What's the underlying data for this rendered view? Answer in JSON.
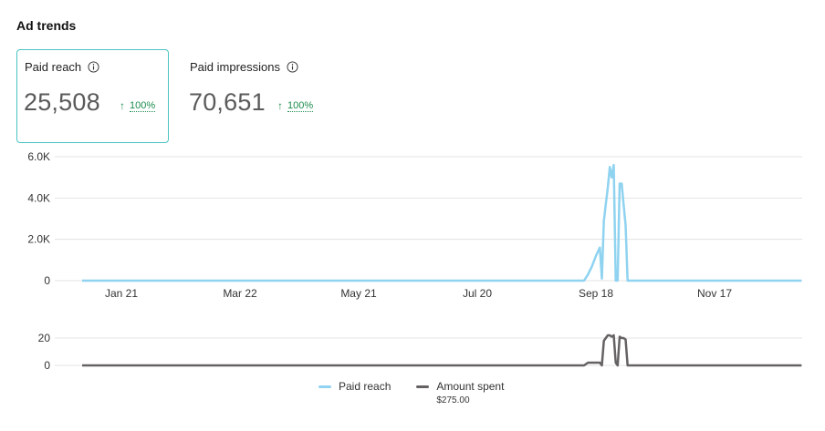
{
  "section": {
    "title": "Ad trends"
  },
  "metrics": [
    {
      "label": "Paid reach",
      "value": "25,508",
      "change": "100%",
      "selected": true
    },
    {
      "label": "Paid impressions",
      "value": "70,651",
      "change": "100%",
      "selected": false
    }
  ],
  "colors": {
    "reach": "#8fd3f0",
    "spent": "#666263",
    "accent": "#4cc3c3",
    "up": "#1e8c4e",
    "grid": "#e3e3e3"
  },
  "legend": {
    "reach_label": "Paid reach",
    "spent_label": "Amount spent",
    "spent_total": "$275.00"
  },
  "chart_data": [
    {
      "type": "line",
      "title": "",
      "xlabel": "",
      "ylabel": "",
      "x_tick_labels": [
        "Jan 21",
        "Mar 22",
        "May 21",
        "Jul 20",
        "Sep 18",
        "Nov 17"
      ],
      "y_tick_labels": [
        "0",
        "2.0K",
        "4.0K",
        "6.0K"
      ],
      "ylim": [
        0,
        6000
      ],
      "grid": true,
      "series": [
        {
          "name": "Paid reach",
          "x": [
            "Dec 28",
            "Sep 12",
            "Sep 14",
            "Sep 16",
            "Sep 18",
            "Sep 20",
            "Sep 21",
            "Sep 22",
            "Sep 23",
            "Sep 24",
            "Sep 25",
            "Sep 26",
            "Sep 27",
            "Sep 28",
            "Sep 29",
            "Sep 30",
            "Oct 1",
            "Oct 2",
            "Oct 3",
            "Oct 4",
            "Oct 5",
            "Oct 6",
            "Dec 31"
          ],
          "values": [
            0,
            0,
            300,
            700,
            1200,
            1600,
            100,
            2900,
            3700,
            4500,
            5500,
            5000,
            5600,
            0,
            0,
            4700,
            4700,
            3700,
            2700,
            0,
            0,
            0,
            0
          ]
        }
      ]
    },
    {
      "type": "line",
      "title": "",
      "xlabel": "",
      "ylabel": "",
      "y_tick_labels": [
        "0",
        "20"
      ],
      "ylim": [
        0,
        30
      ],
      "grid": true,
      "series": [
        {
          "name": "Amount spent",
          "x": [
            "Dec 28",
            "Sep 12",
            "Sep 14",
            "Sep 16",
            "Sep 18",
            "Sep 20",
            "Sep 21",
            "Sep 22",
            "Sep 23",
            "Sep 24",
            "Sep 25",
            "Sep 26",
            "Sep 27",
            "Sep 28",
            "Sep 29",
            "Sep 30",
            "Oct 1",
            "Oct 2",
            "Oct 3",
            "Oct 4",
            "Oct 5",
            "Oct 6",
            "Dec 31"
          ],
          "values": [
            0,
            0,
            2,
            2,
            2,
            2,
            0,
            18,
            20,
            22,
            22,
            21,
            22,
            2,
            0,
            21,
            20,
            20,
            19,
            0,
            0,
            0,
            0
          ]
        }
      ]
    }
  ]
}
